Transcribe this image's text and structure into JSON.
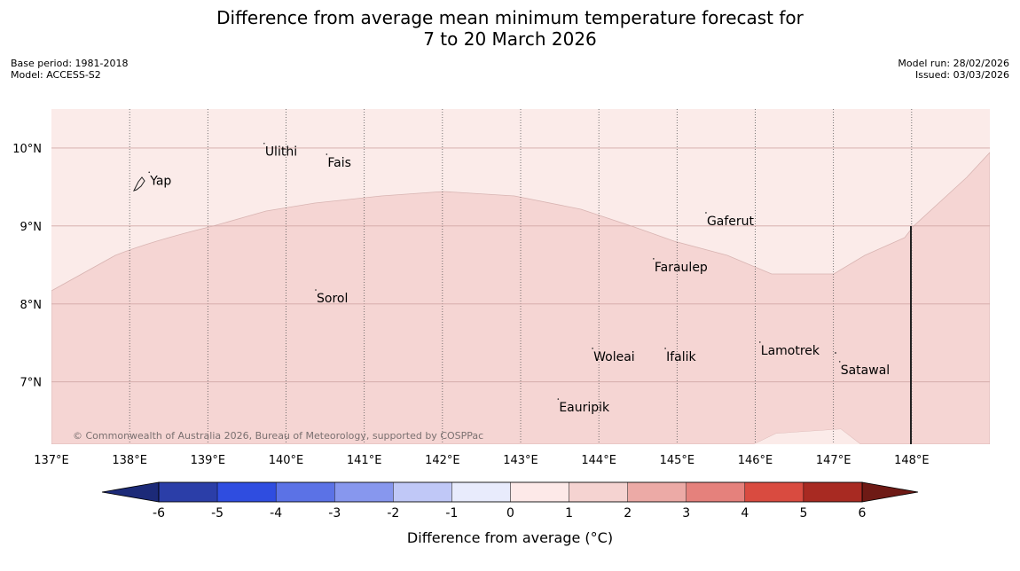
{
  "title": {
    "line1": "Difference from average mean minimum temperature forecast for",
    "line2": "7 to 20 March 2026"
  },
  "meta_left": {
    "base_period": "Base period: 1981-2018",
    "model": "Model: ACCESS-S2"
  },
  "meta_right": {
    "model_run": "Model run: 28/02/2026",
    "issued": "Issued: 03/03/2026"
  },
  "map": {
    "lon_labels": [
      "137°E",
      "138°E",
      "139°E",
      "140°E",
      "141°E",
      "142°E",
      "143°E",
      "144°E",
      "145°E",
      "146°E",
      "147°E",
      "148°E"
    ],
    "lon_values": [
      137,
      138,
      139,
      140,
      141,
      142,
      143,
      144,
      145,
      146,
      147,
      148
    ],
    "lat_labels": [
      "10°N",
      "9°N",
      "8°N",
      "7°N"
    ],
    "lat_values": [
      10,
      9,
      8,
      7
    ],
    "lon_range": [
      137,
      149
    ],
    "lat_range": [
      6.2,
      10.5
    ],
    "places": [
      {
        "name": "Yap",
        "lon": 138.25,
        "lat": 9.53
      },
      {
        "name": "Ulithi",
        "lon": 139.72,
        "lat": 9.9
      },
      {
        "name": "Fais",
        "lon": 140.52,
        "lat": 9.76
      },
      {
        "name": "Gaferut",
        "lon": 145.37,
        "lat": 9.01
      },
      {
        "name": "Faraulep",
        "lon": 144.7,
        "lat": 8.42
      },
      {
        "name": "Sorol",
        "lon": 140.38,
        "lat": 8.02
      },
      {
        "name": "Lamotrek",
        "lon": 146.06,
        "lat": 7.35
      },
      {
        "name": "Woleai",
        "lon": 143.92,
        "lat": 7.27
      },
      {
        "name": "Ifalik",
        "lon": 144.85,
        "lat": 7.27
      },
      {
        "name": "Satawal",
        "lon": 147.08,
        "lat": 7.1
      },
      {
        "name": "Eauripik",
        "lon": 143.48,
        "lat": 6.62
      }
    ],
    "copyright": "© Commonwealth of Australia 2026, Bureau of Meteorology, supported by COSPPac"
  },
  "colorbar": {
    "ticks": [
      "-6",
      "-5",
      "-4",
      "-3",
      "-2",
      "-1",
      "0",
      "1",
      "2",
      "3",
      "4",
      "5",
      "6"
    ],
    "colors": [
      "#2b3ea8",
      "#2f4de0",
      "#5b72e6",
      "#8797ee",
      "#c0c8f7",
      "#e8ebfc",
      "#fde9e8",
      "#f5d3d1",
      "#ecaaa6",
      "#e5817c",
      "#d94b40",
      "#a82a22"
    ],
    "under_color": "#1c2a78",
    "over_color": "#6e1a15",
    "label": "Difference from average (°C)"
  },
  "field_colors": {
    "band_0_1": "#fbebe9",
    "band_1_2": "#f5d5d3"
  }
}
